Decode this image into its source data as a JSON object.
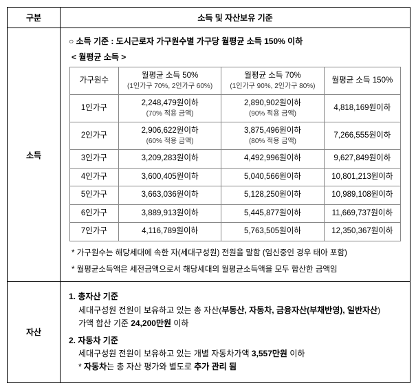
{
  "header": {
    "col1": "구분",
    "col2": "소득 및 자산보유 기준"
  },
  "income": {
    "row_label": "소득",
    "criteria_line": "○ 소득 기준 :  도시근로자 가구원수별 가구당 월평균 소득 150% 이하",
    "subheading": "< 월평균 소득 >",
    "table": {
      "head_hh": "가구원수",
      "head_col2_main": "월평균 소득 50%",
      "head_col2_sub": "(1인가구 70%, 2인가구 60%)",
      "head_col3_main": "월평균 소득 70%",
      "head_col3_sub": "(1인가구 90%, 2인가구 80%)",
      "head_col4": "월평균 소득 150%",
      "rows": [
        {
          "hh": "1인가구",
          "c2": "2,248,479원이하",
          "c2s": "(70% 적용 금액)",
          "c3": "2,890,902원이하",
          "c3s": "(90% 적용 금액)",
          "c4": "4,818,169원이하"
        },
        {
          "hh": "2인가구",
          "c2": "2,906,622원이하",
          "c2s": "(60% 적용 금액)",
          "c3": "3,875,496원이하",
          "c3s": "(80% 적용 금액)",
          "c4": "7,266,555원이하"
        },
        {
          "hh": "3인가구",
          "c2": "3,209,283원이하",
          "c2s": "",
          "c3": "4,492,996원이하",
          "c3s": "",
          "c4": "9,627,849원이하"
        },
        {
          "hh": "4인가구",
          "c2": "3,600,405원이하",
          "c2s": "",
          "c3": "5,040,566원이하",
          "c3s": "",
          "c4": "10,801,213원이하"
        },
        {
          "hh": "5인가구",
          "c2": "3,663,036원이하",
          "c2s": "",
          "c3": "5,128,250원이하",
          "c3s": "",
          "c4": "10,989,108원이하"
        },
        {
          "hh": "6인가구",
          "c2": "3,889,913원이하",
          "c2s": "",
          "c3": "5,445,877원이하",
          "c3s": "",
          "c4": "11,669,737원이하"
        },
        {
          "hh": "7인가구",
          "c2": "4,116,789원이하",
          "c2s": "",
          "c3": "5,763,505원이하",
          "c3s": "",
          "c4": "12,350,367원이하"
        }
      ]
    },
    "note1": "* 가구원수는 해당세대에 속한 자(세대구성원) 전원을 말함 (임신중인 경우 태아 포함)",
    "note2": "* 월평균소득액은 세전금액으로서 해당세대의 월평균소득액을 모두 합산한 금액임"
  },
  "asset": {
    "row_label": "자산",
    "t1_num": "1. 총자산 기준",
    "t1_line1a": "세대구성원 전원이 보유하고 있는 총 자산(",
    "t1_bold_list": "부동산, 자동차, 금융자산(부채반영), 일반자산",
    "t1_line1b": ")",
    "t1_line2a": "가액 합산 기준 ",
    "t1_limit": "24,200만원",
    "t1_line2b": " 이하",
    "t2_num": "2. 자동차 기준",
    "t2_line_a": "세대구성원 전원이 보유하고 있는 개별 자동차가액 ",
    "t2_limit": "3,557만원",
    "t2_line_b": " 이하",
    "t2_note_a": "* ",
    "t2_note_bold1": "자동차",
    "t2_note_mid": "는 총 자산 평가와 별도로 ",
    "t2_note_bold2": "추가 관리 됨"
  }
}
